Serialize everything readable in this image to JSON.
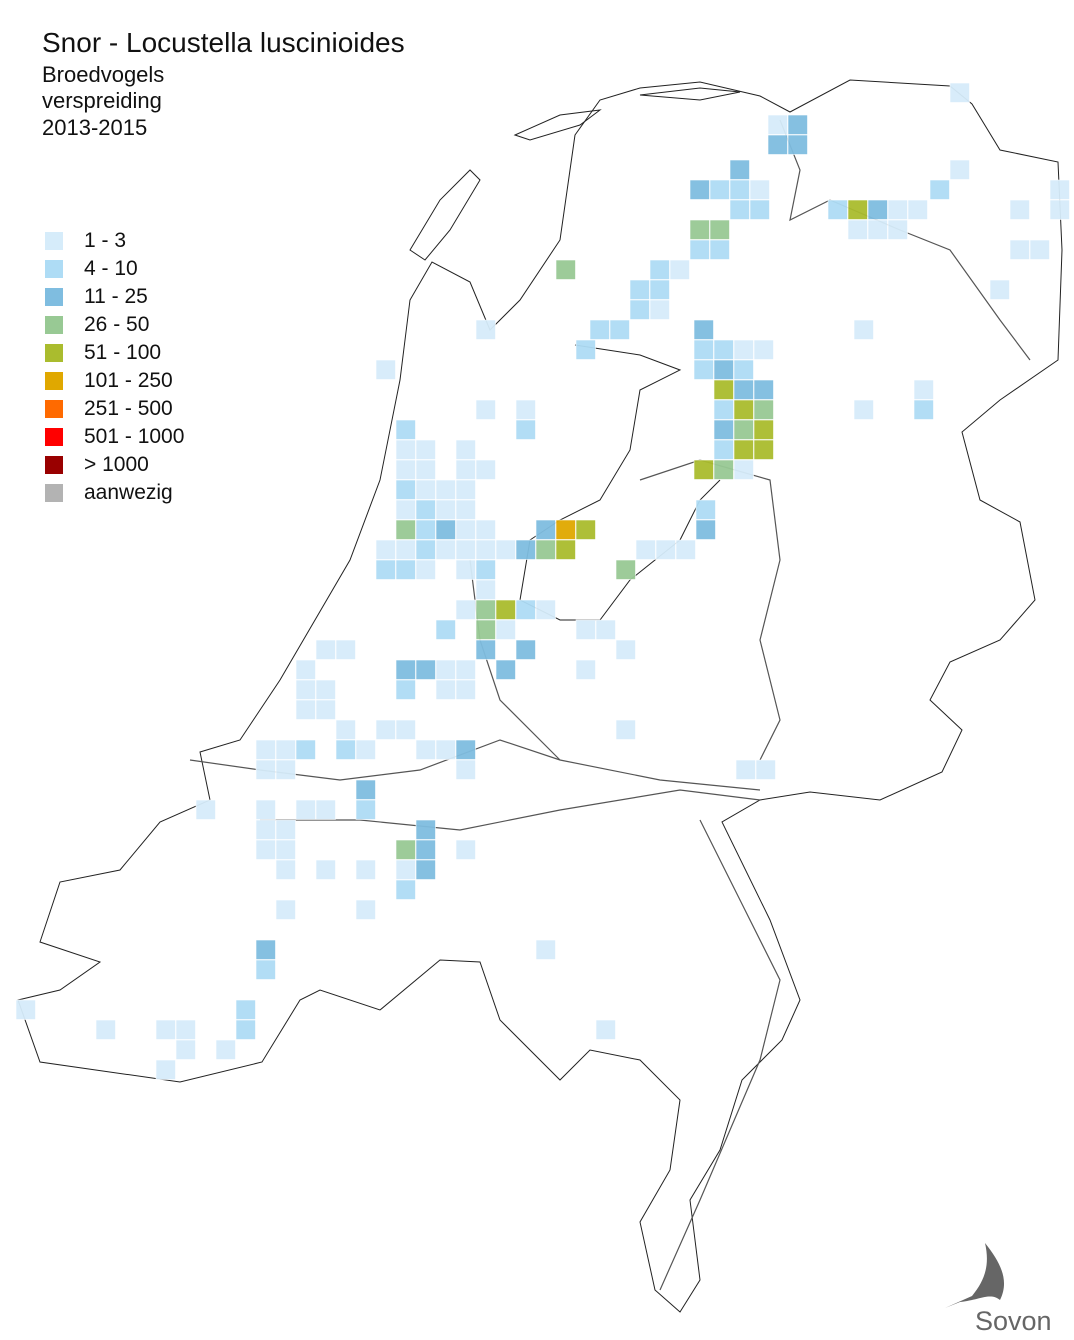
{
  "title": "Snor - Locustella luscinioides",
  "subtitle": [
    "Broedvogels",
    "verspreiding",
    "2013-2015"
  ],
  "legend": [
    {
      "label": "1 - 3",
      "color": "#d6ecfa"
    },
    {
      "label": "4 - 10",
      "color": "#aedcf5"
    },
    {
      "label": "11 - 25",
      "color": "#7fbde0"
    },
    {
      "label": "26 - 50",
      "color": "#98c994"
    },
    {
      "label": "51 - 100",
      "color": "#aabc2e"
    },
    {
      "label": "101 - 250",
      "color": "#e0a800"
    },
    {
      "label": "251 - 500",
      "color": "#ff6a00"
    },
    {
      "label": "501 - 1000",
      "color": "#ff0000"
    },
    {
      "label": "> 1000",
      "color": "#990000"
    },
    {
      "label": "aanwezig",
      "color": "#b3b3b3"
    }
  ],
  "logo": "Sovon"
}
